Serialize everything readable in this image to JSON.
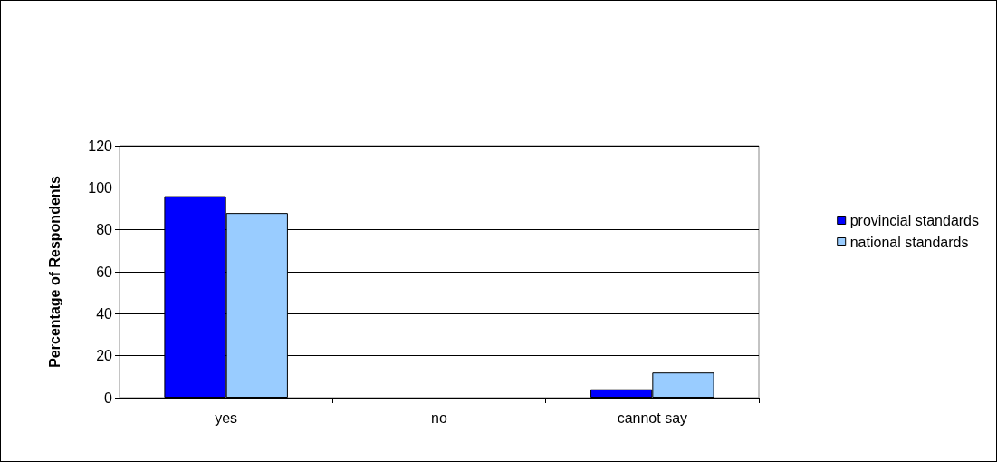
{
  "chart_data": {
    "type": "bar",
    "ylabel": "Percentage of Respondents",
    "categories": [
      "yes",
      "no",
      "cannot say"
    ],
    "series": [
      {
        "name": "provincial standards",
        "color": "#0000ff",
        "values": [
          96,
          0,
          4
        ]
      },
      {
        "name": "national standards",
        "color": "#99ccff",
        "values": [
          88,
          0,
          12
        ]
      }
    ],
    "ylim": [
      0,
      120
    ],
    "yticks": [
      0,
      20,
      40,
      60,
      80,
      100,
      120
    ],
    "grid": "y",
    "legend": "right"
  }
}
